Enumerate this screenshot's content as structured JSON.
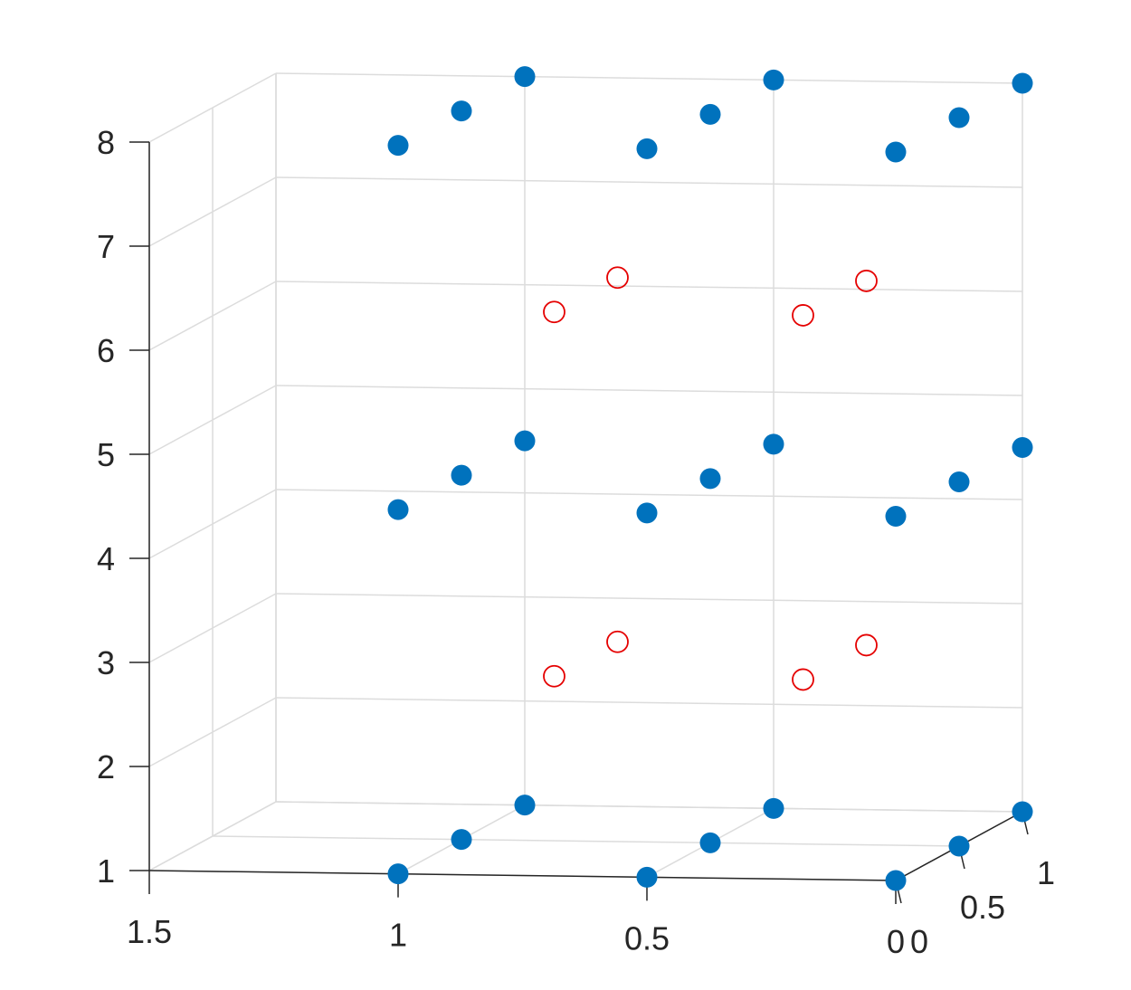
{
  "chart_data": {
    "type": "scatter",
    "title": "",
    "xlabel": "",
    "ylabel": "",
    "zlabel": "",
    "xlim": [
      0,
      1.5
    ],
    "ylim": [
      0,
      1
    ],
    "zlim": [
      1,
      8
    ],
    "grid": true,
    "legend": "none",
    "x_ticks": [
      0,
      0.5,
      1,
      1.5
    ],
    "x_tick_labels": [
      "0",
      "0.5",
      "1",
      "1.5"
    ],
    "y_ticks": [
      0,
      0.5,
      1
    ],
    "y_tick_labels": [
      "0",
      "0.5",
      "1"
    ],
    "z_ticks": [
      1,
      2,
      3,
      4,
      5,
      6,
      7,
      8
    ],
    "z_tick_labels": [
      "1",
      "2",
      "3",
      "4",
      "5",
      "6",
      "7",
      "8"
    ],
    "series": [
      {
        "marker": "filled-circle",
        "color": "#0072BD",
        "points": [
          [
            0,
            0,
            1
          ],
          [
            0,
            0.5,
            1
          ],
          [
            0,
            1,
            1
          ],
          [
            0.5,
            0,
            1
          ],
          [
            0.5,
            0.5,
            1
          ],
          [
            0.5,
            1,
            1
          ],
          [
            1,
            0,
            1
          ],
          [
            1,
            0.5,
            1
          ],
          [
            1,
            1,
            1
          ],
          [
            0,
            0,
            4.5
          ],
          [
            0,
            0.5,
            4.5
          ],
          [
            0,
            1,
            4.5
          ],
          [
            0.5,
            0,
            4.5
          ],
          [
            0.5,
            0.5,
            4.5
          ],
          [
            0.5,
            1,
            4.5
          ],
          [
            1,
            0,
            4.5
          ],
          [
            1,
            0.5,
            4.5
          ],
          [
            1,
            1,
            4.5
          ],
          [
            0,
            0,
            8
          ],
          [
            0,
            0.5,
            8
          ],
          [
            0,
            1,
            8
          ],
          [
            0.5,
            0,
            8
          ],
          [
            0.5,
            0.5,
            8
          ],
          [
            0.5,
            1,
            8
          ],
          [
            1,
            0,
            8
          ],
          [
            1,
            0.5,
            8
          ],
          [
            1,
            1,
            8
          ]
        ]
      },
      {
        "marker": "open-circle",
        "color": "#E50000",
        "points": [
          [
            0.25,
            0.25,
            2.75
          ],
          [
            0.25,
            0.75,
            2.75
          ],
          [
            0.75,
            0.25,
            2.75
          ],
          [
            0.75,
            0.75,
            2.75
          ],
          [
            0.25,
            0.25,
            6.25
          ],
          [
            0.25,
            0.75,
            6.25
          ],
          [
            0.75,
            0.25,
            6.25
          ],
          [
            0.75,
            0.75,
            6.25
          ]
        ]
      }
    ]
  }
}
